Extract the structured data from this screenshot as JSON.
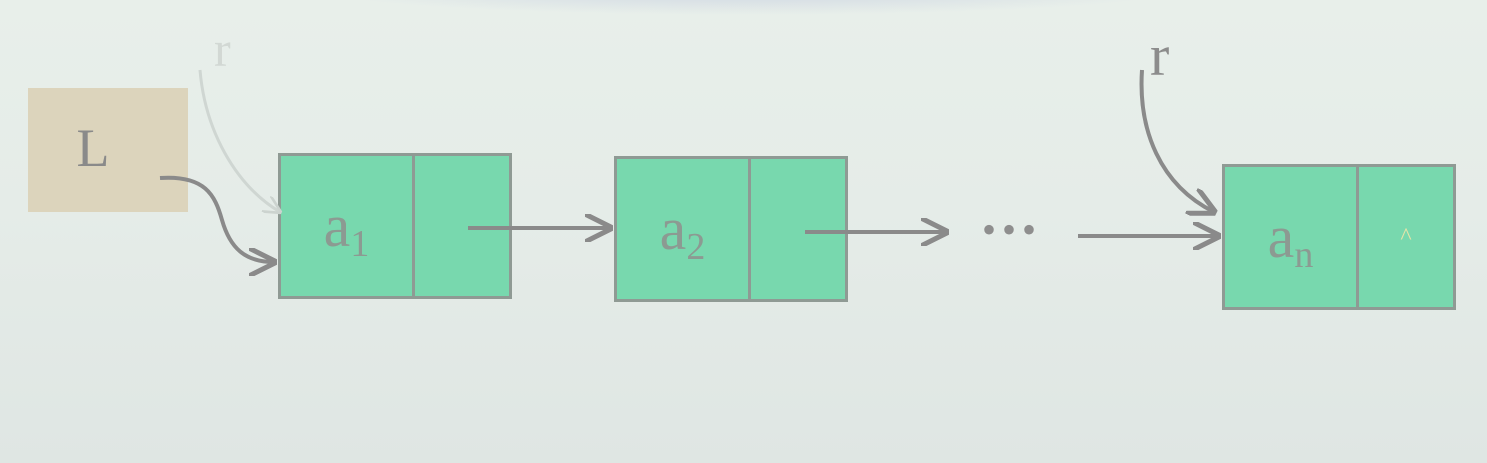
{
  "head": {
    "label": "L"
  },
  "pointers": {
    "r_label": "r",
    "faint_r_label": "r"
  },
  "nodes": [
    {
      "var": "a",
      "sub": "1",
      "next": ""
    },
    {
      "var": "a",
      "sub": "2",
      "next": ""
    },
    {
      "var": "a",
      "sub": "n",
      "next": "^"
    }
  ],
  "ellipsis": "•••",
  "colors": {
    "node_fill": "#78d8ae",
    "node_border": "#8f9a94",
    "head_fill": "#dcd4bc",
    "arrow": "#8a8a8a",
    "background": "#e5ece8"
  }
}
